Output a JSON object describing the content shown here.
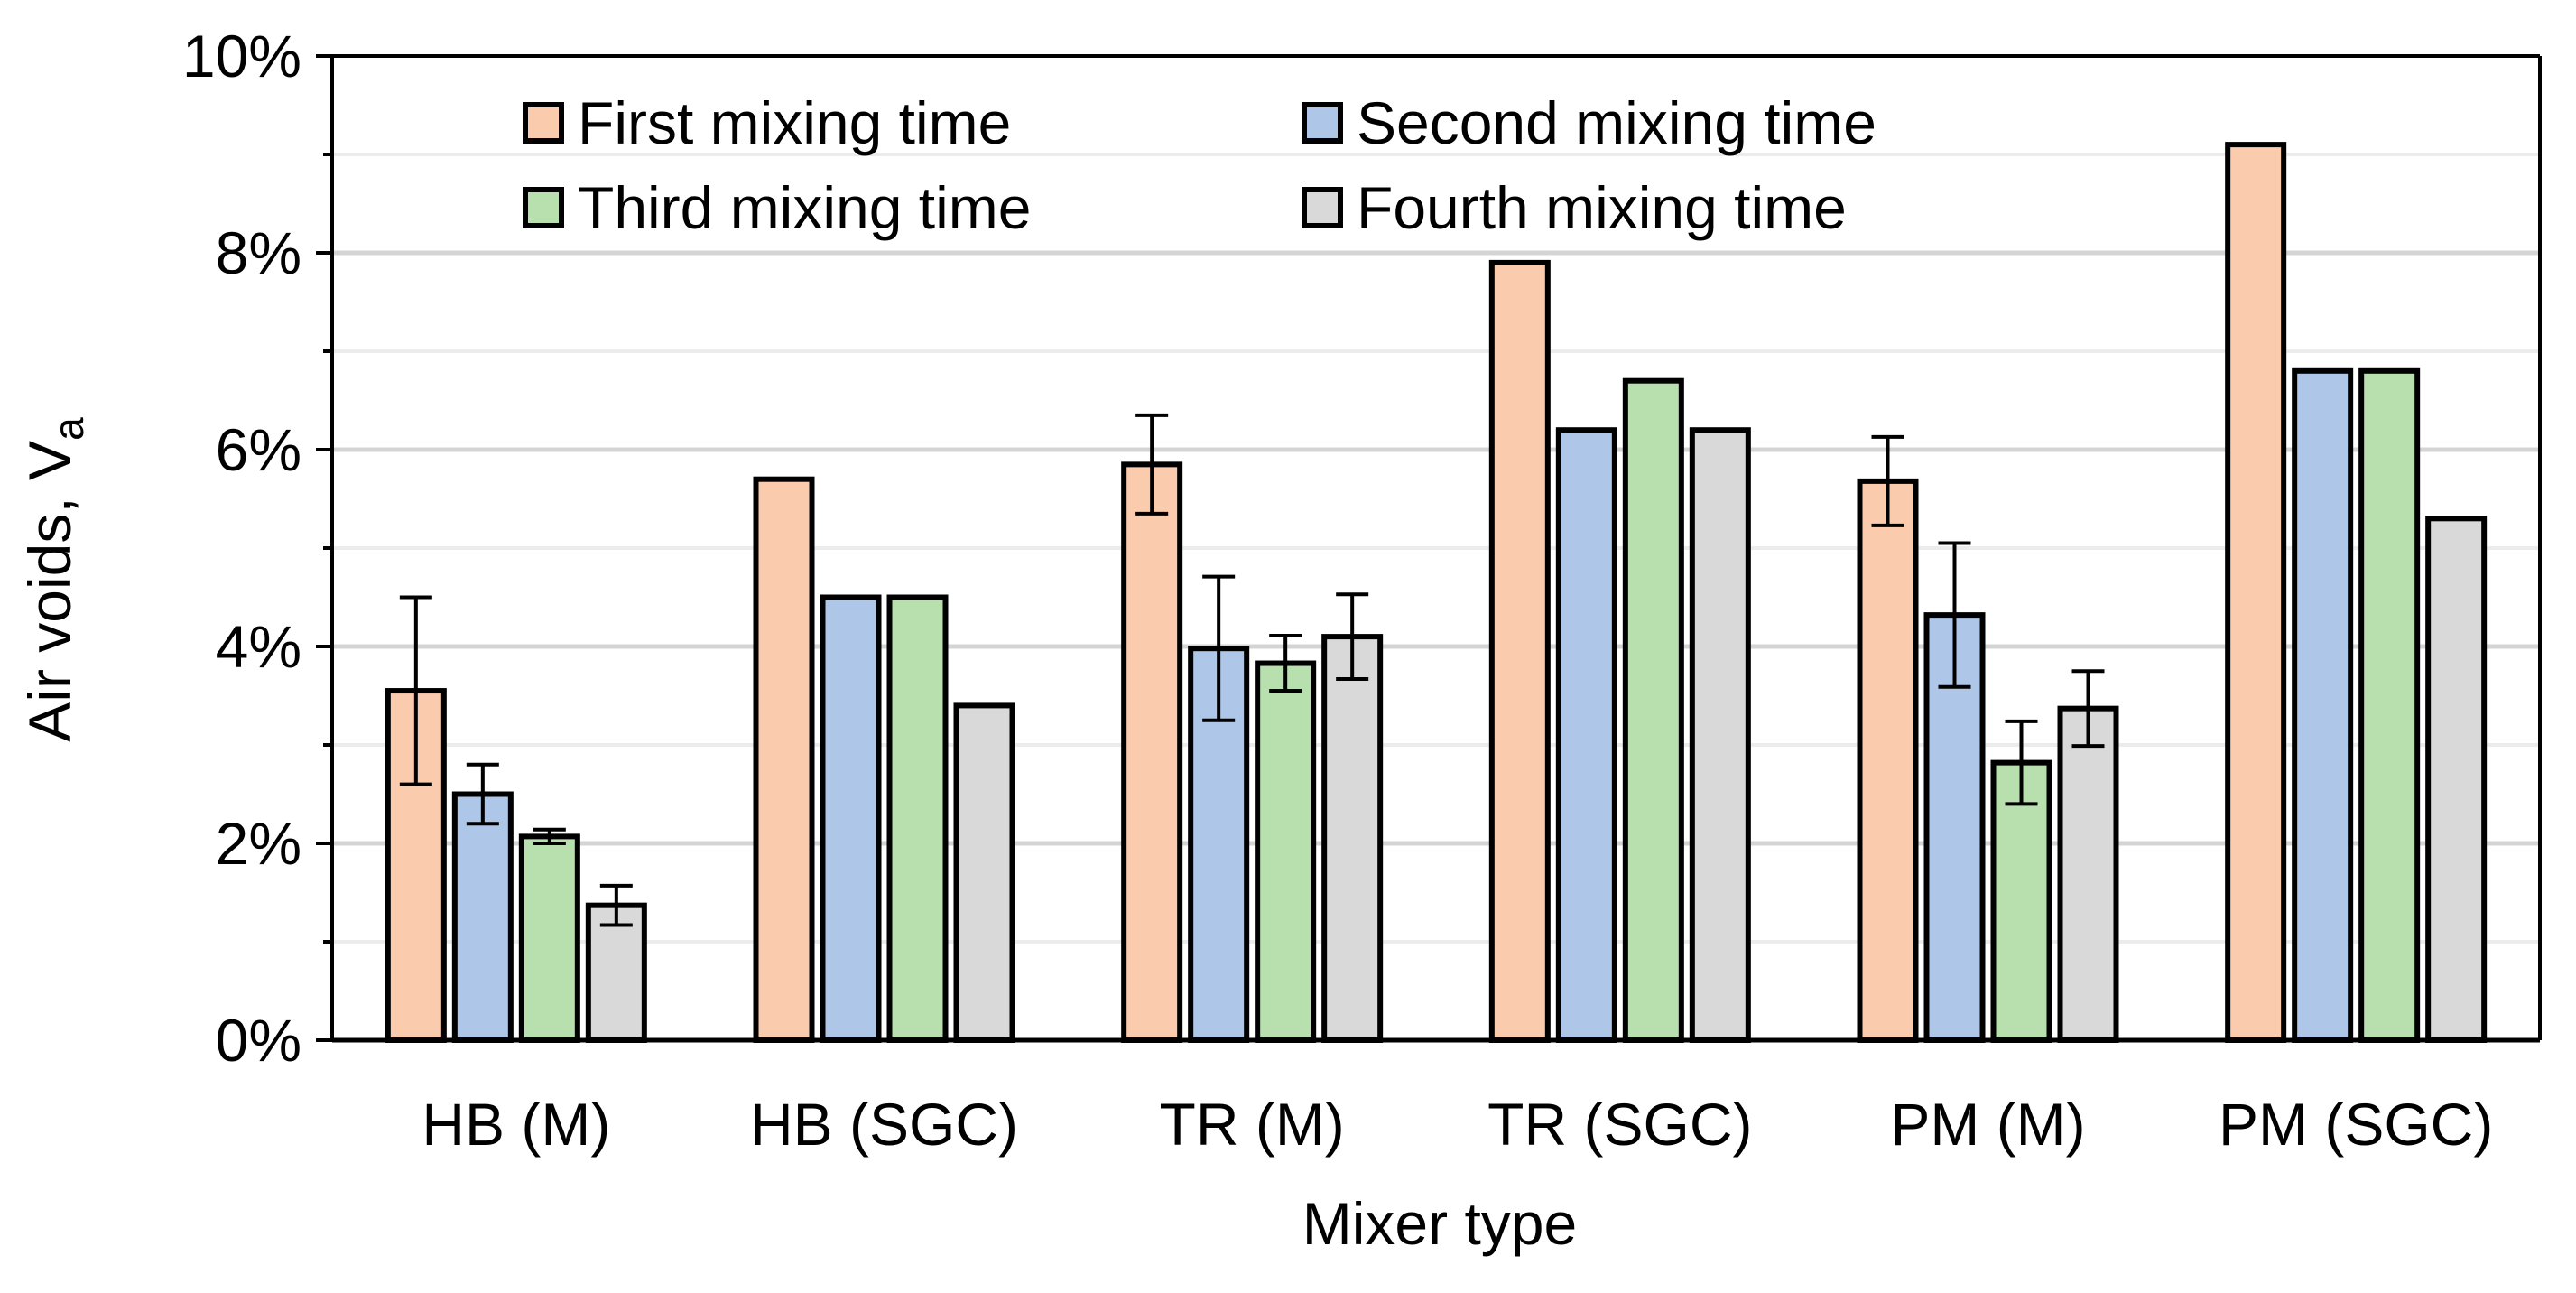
{
  "chart_data": {
    "type": "bar",
    "ylabel_main": "Air voids, V",
    "ylabel_sub": "a",
    "xlabel": "Mixer type",
    "ylim": [
      0,
      10
    ],
    "y_ticks": [
      "0%",
      "2%",
      "4%",
      "6%",
      "8%",
      "10%"
    ],
    "categories": [
      "HB (M)",
      "HB (SGC)",
      "TR (M)",
      "TR (SGC)",
      "PM (M)",
      "PM (SGC)"
    ],
    "series": [
      {
        "name": "First mixing time",
        "color": "#FBCBAE",
        "values": [
          3.55,
          5.7,
          5.85,
          7.9,
          5.68,
          9.1
        ],
        "errors": [
          0.95,
          null,
          0.5,
          null,
          0.45,
          null
        ]
      },
      {
        "name": "Second mixing time",
        "color": "#AEC7E8",
        "values": [
          2.5,
          4.5,
          3.98,
          6.2,
          4.32,
          6.8
        ],
        "errors": [
          0.3,
          null,
          0.73,
          null,
          0.73,
          null
        ]
      },
      {
        "name": "Third mixing time",
        "color": "#B7E0AE",
        "values": [
          2.07,
          4.5,
          3.83,
          6.7,
          2.82,
          6.8
        ],
        "errors": [
          0.07,
          null,
          0.28,
          null,
          0.42,
          null
        ]
      },
      {
        "name": "Fourth mixing time",
        "color": "#D9D9D9",
        "values": [
          1.37,
          3.4,
          4.1,
          6.2,
          3.37,
          5.3
        ],
        "errors": [
          0.2,
          null,
          0.43,
          null,
          0.38,
          null
        ]
      }
    ],
    "grid": true,
    "legend_position": "top-left, inside plot"
  }
}
